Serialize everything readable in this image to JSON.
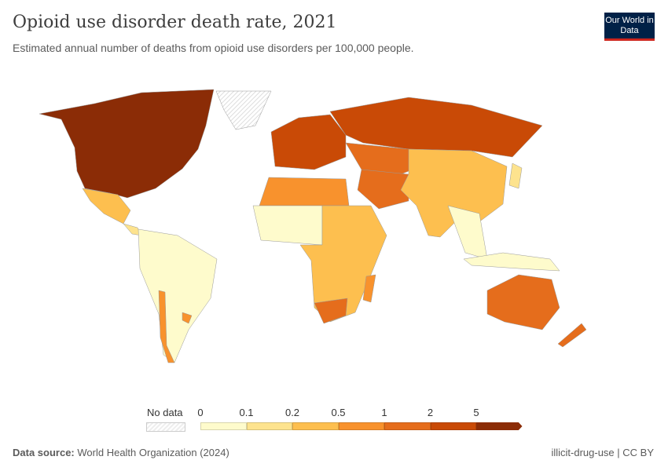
{
  "header": {
    "title": "Opioid use disorder death rate, 2021",
    "subtitle": "Estimated annual number of deaths from opioid use disorders per 100,000 people.",
    "logo": "Our World in Data"
  },
  "footer": {
    "source_label": "Data source:",
    "source": "World Health Organization (2024)",
    "slug_license": "illicit-drug-use | CC BY"
  },
  "chart_data": {
    "type": "choropleth",
    "title": "Opioid use disorder death rate, 2021",
    "unit": "deaths per 100,000 people",
    "legend": {
      "no_data_label": "No data",
      "ticks": [
        "0",
        "0.1",
        "0.2",
        "0.5",
        "1",
        "2",
        "5"
      ],
      "bins": [
        {
          "range": "0–0.1",
          "color": "#fefbcc"
        },
        {
          "range": "0.1–0.2",
          "color": "#fde38e"
        },
        {
          "range": "0.2–0.5",
          "color": "#fdbf4f"
        },
        {
          "range": "0.5–1",
          "color": "#f8922d"
        },
        {
          "range": "1–2",
          "color": "#e56d1c"
        },
        {
          "range": "2–5",
          "color": "#c94a06"
        },
        {
          "range": ">5",
          "color": "#8b2c06"
        }
      ],
      "no_data_color": "#eeeeee"
    },
    "regions": [
      {
        "name": "United States & Canada",
        "bin": 6
      },
      {
        "name": "Greenland",
        "bin": null
      },
      {
        "name": "Mexico",
        "bin": 2
      },
      {
        "name": "Central America",
        "bin": 1
      },
      {
        "name": "South America",
        "bin": 0
      },
      {
        "name": "Chile",
        "bin": 3
      },
      {
        "name": "Uruguay",
        "bin": 3
      },
      {
        "name": "Europe",
        "bin": 5
      },
      {
        "name": "Russia",
        "bin": 5
      },
      {
        "name": "Central Asia",
        "bin": 4
      },
      {
        "name": "Iran & Middle East",
        "bin": 4
      },
      {
        "name": "China & South Asia",
        "bin": 2
      },
      {
        "name": "Southeast Asia",
        "bin": 0
      },
      {
        "name": "Japan",
        "bin": 1
      },
      {
        "name": "North Africa",
        "bin": 3
      },
      {
        "name": "West Africa",
        "bin": 0
      },
      {
        "name": "East & Central Africa",
        "bin": 2
      },
      {
        "name": "South Africa",
        "bin": 4
      },
      {
        "name": "Madagascar",
        "bin": 3
      },
      {
        "name": "Australia",
        "bin": 4
      },
      {
        "name": "New Zealand",
        "bin": 4
      },
      {
        "name": "Indonesia & Pacific",
        "bin": 0
      }
    ]
  }
}
